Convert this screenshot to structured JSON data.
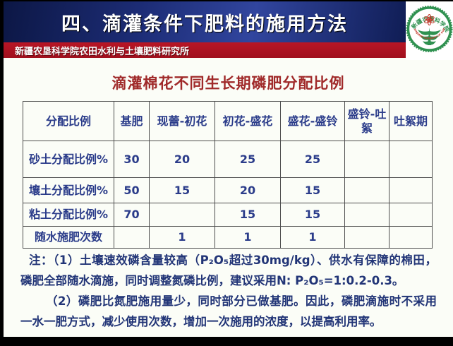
{
  "slide": {
    "header": {
      "title": "四、滴灌条件下肥料的施用方法"
    },
    "affiliation": {
      "text": "新疆农垦科学院农田水利与土壤肥料研究所"
    },
    "logo": {
      "icon": "academy-emblem-icon",
      "top_arc_text": "新疆农垦科学院",
      "bottom_arc_text": "XINJIANG ACADEMY OF AGRICULTURAL AND RECLAMATION SCIENCE"
    },
    "content_title": "滴灌棉花不同生长期磷肥分配比例",
    "table": {
      "headers": [
        "分配比例",
        "基肥",
        "现蕾-初花",
        "初花-盛花",
        "盛花-盛铃",
        "盛铃-吐絮",
        "吐絮期"
      ],
      "rows": [
        {
          "label": "砂土分配比例%",
          "values": [
            "30",
            "20",
            "25",
            "25",
            "",
            ""
          ]
        },
        {
          "label": "壤土分配比例%",
          "values": [
            "50",
            "15",
            "20",
            "15",
            "",
            ""
          ]
        },
        {
          "label": "粘土分配比例%",
          "values": [
            "70",
            "",
            "15",
            "15",
            "",
            ""
          ]
        },
        {
          "label": "随水施肥次数",
          "values": [
            "",
            "1",
            "1",
            "1",
            "",
            ""
          ]
        }
      ]
    },
    "notes": [
      "注：（1）土壤速效磷含量较高（P₂O₅超过30mg/kg）、供水有保障的棉田，磷肥全部随水滴施，同时调整氮磷比例，建议采用N: P₂O₅=1:0.2-0.3。",
      "（2）磷肥比氮肥施用量少，同时部分已做基肥。因此，磷肥滴施时不采用一水一肥方式，减少使用次数，增加一次施用的浓度，以提高利用率。"
    ],
    "colors": {
      "header_navy": "#1d2d77",
      "affiliation_red": "#aa1420",
      "title_red": "#a02a2a",
      "table_text_navy": "#2b3c8a",
      "note_text_navy": "#223577",
      "logo_green": "#2f9150",
      "logo_red": "#c0392b",
      "background": "#fbfdf7"
    }
  }
}
